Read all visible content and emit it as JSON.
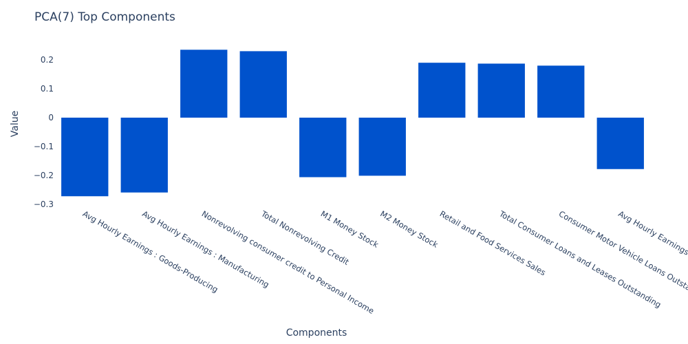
{
  "chart_data": {
    "type": "bar",
    "title": "PCA(7) Top Components",
    "xlabel": "Components",
    "ylabel": "Value",
    "ylim": [
      -0.3,
      0.25
    ],
    "yticks": [
      0.2,
      0.1,
      0,
      -0.1,
      -0.2,
      -0.3
    ],
    "ytick_labels": [
      "0.2",
      "0.1",
      "0",
      "−0.1",
      "−0.2",
      "−0.3"
    ],
    "grid": false,
    "bar_color": "#0052cc",
    "categories": [
      "Avg Hourly Earnings : Goods-Producing",
      "Avg Hourly Earnings : Manufacturing",
      "Nonrevolving consumer credit to Personal Income",
      "Total Nonrevolving Credit",
      "M1 Money Stock",
      "M2 Money Stock",
      "Retail and Food Services Sales",
      "Total Consumer Loans and Leases Outstanding",
      "Consumer Motor Vehicle Loans Outstanding",
      "Avg Hourly Earnings : Construction"
    ],
    "values": [
      -0.272,
      -0.259,
      0.235,
      0.23,
      -0.206,
      -0.201,
      0.19,
      0.187,
      0.18,
      -0.178
    ]
  }
}
